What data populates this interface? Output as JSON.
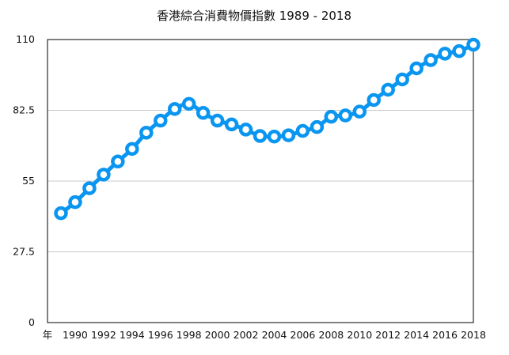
{
  "chart_data": {
    "type": "line",
    "title": "香港綜合消費物價指數 1989 - 2018",
    "xlabel": "年",
    "ylabel": "",
    "ylim": [
      0,
      110
    ],
    "yticks": [
      0,
      27.5,
      55,
      82.5,
      110
    ],
    "ytick_labels": [
      "0",
      "27.5",
      "55",
      "82.5",
      "110"
    ],
    "xticks": [
      1990,
      1992,
      1994,
      1996,
      1998,
      2000,
      2002,
      2004,
      2006,
      2008,
      2010,
      2012,
      2014,
      2016,
      2018
    ],
    "xtick_labels": [
      "1990",
      "1992",
      "1994",
      "1996",
      "1998",
      "2000",
      "2002",
      "2004",
      "2006",
      "2008",
      "2010",
      "2012",
      "2014",
      "2016",
      "2018"
    ],
    "xlim": [
      1989,
      2018
    ],
    "grid": true,
    "legend": "none",
    "x": [
      1989,
      1990,
      1991,
      1992,
      1993,
      1994,
      1995,
      1996,
      1997,
      1998,
      1999,
      2000,
      2001,
      2002,
      2003,
      2004,
      2005,
      2006,
      2007,
      2008,
      2009,
      2010,
      2011,
      2012,
      2013,
      2014,
      2015,
      2016,
      2017,
      2018
    ],
    "series": [
      {
        "values": [
          42.5,
          46.8,
          52.2,
          57.5,
          62.6,
          67.5,
          73.8,
          78.5,
          83.0,
          85.0,
          81.5,
          78.5,
          77.0,
          75.0,
          72.5,
          72.3,
          72.8,
          74.5,
          76.0,
          80.0,
          80.5,
          82.0,
          86.5,
          90.5,
          94.5,
          98.8,
          102.0,
          104.5,
          105.5,
          108.0
        ],
        "color": "#0a96f0"
      }
    ]
  }
}
